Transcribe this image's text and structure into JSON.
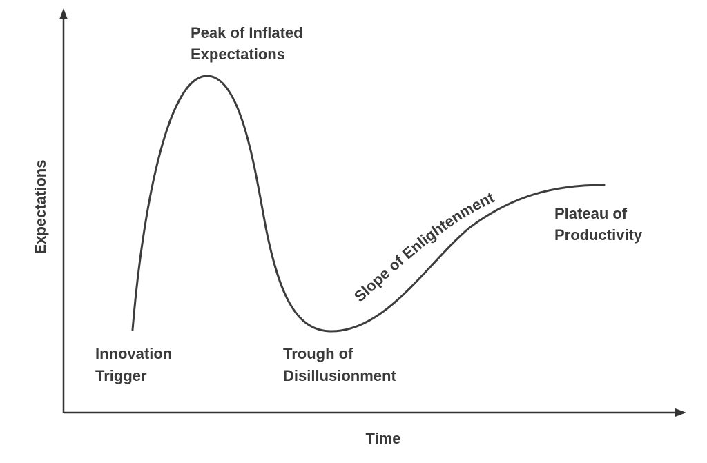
{
  "diagram": {
    "axes": {
      "x_label": "Time",
      "y_label": "Expectations"
    },
    "phases": {
      "innovation_trigger": [
        "Innovation",
        "Trigger"
      ],
      "peak": [
        "Peak of Inflated",
        "Expectations"
      ],
      "trough": [
        "Trough of",
        "Disillusionment"
      ],
      "slope": "Slope of Enlightenment",
      "plateau": [
        "Plateau of",
        "Productivity"
      ]
    },
    "colors": {
      "ink": "#3a3a3a",
      "background": "#ffffff"
    }
  }
}
